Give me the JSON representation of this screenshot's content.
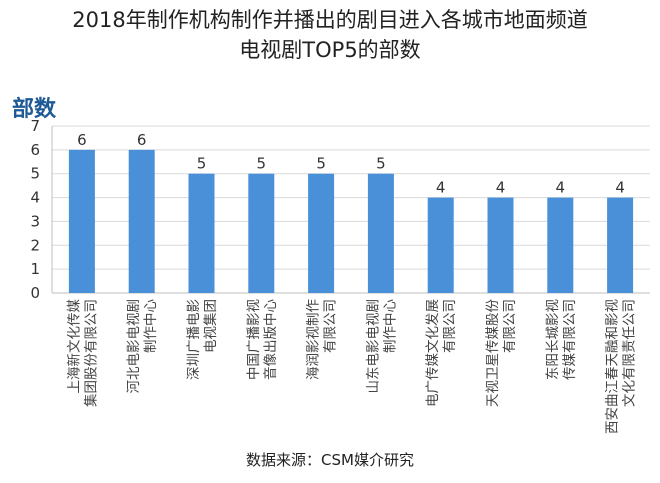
{
  "title_line1": "2018年制作机构制作并播出的剧目进入各城市地面频道",
  "title_line2": "电视剧TOP5的部数",
  "source": "数据来源：CSM媒介研究",
  "chart_data": {
    "type": "bar",
    "title": "2018年制作机构制作并播出的剧目进入各城市地面频道电视剧TOP5的部数",
    "ylabel": "部数",
    "xlabel": "",
    "ylim": [
      0,
      7
    ],
    "yticks": [
      0,
      1,
      2,
      3,
      4,
      5,
      6,
      7
    ],
    "grid": true,
    "bar_color": "#4a90d9",
    "categories": [
      [
        "上海新文化传媒",
        "集团股份有限公司"
      ],
      [
        "河北电影电视剧",
        "制作中心"
      ],
      [
        "深圳广播电影",
        "电视集团"
      ],
      [
        "中国广播影视",
        "音像出版中心"
      ],
      [
        "海润影视制作",
        "有限公司"
      ],
      [
        "山东电影电视剧",
        "制作中心"
      ],
      [
        "电广传媒文化发展",
        "有限公司"
      ],
      [
        "天视卫星传媒股份",
        "有限公司"
      ],
      [
        "东阳长城影视",
        "传媒有限公司"
      ],
      [
        "西安曲江春天融和影视",
        "文化有限责任公司"
      ]
    ],
    "values": [
      6,
      6,
      5,
      5,
      5,
      5,
      4,
      4,
      4,
      4
    ]
  }
}
